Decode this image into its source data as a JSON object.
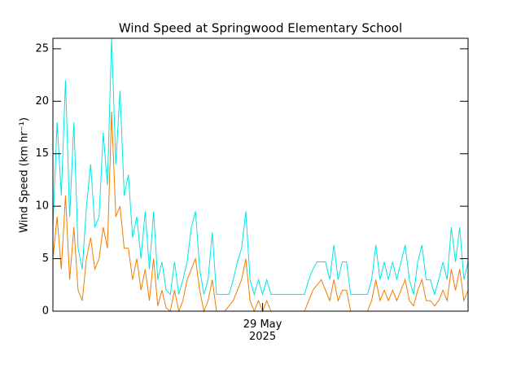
{
  "chart_data": {
    "type": "line",
    "title": "Wind Speed at Springwood Elementary School",
    "y_label": "Wind Speed (km hr⁻¹)",
    "categories": [
      null,
      null,
      null,
      null,
      null,
      null,
      null,
      null,
      null,
      null,
      null,
      null,
      null,
      null,
      null,
      null,
      null,
      null,
      null,
      null,
      null,
      null,
      null,
      null,
      null,
      null,
      null,
      null,
      null,
      null,
      null,
      null,
      null,
      null,
      null,
      null,
      null,
      null,
      null,
      null,
      null,
      null,
      null,
      null,
      null,
      null,
      null,
      null,
      null,
      null,
      "29 May 2025",
      null,
      null,
      null,
      null,
      null,
      null,
      null,
      null,
      null,
      null,
      null,
      null,
      null,
      null,
      null,
      null,
      null,
      null,
      null,
      null,
      null,
      null,
      null,
      null,
      null,
      null,
      null,
      null,
      null,
      null,
      null,
      null,
      null,
      null,
      null,
      null,
      null,
      null,
      null,
      null,
      null,
      null,
      null,
      null,
      null,
      null,
      null,
      null,
      null
    ],
    "series": [
      {
        "color": "#00e5e5",
        "values": [
          8,
          18,
          11,
          22,
          9,
          18,
          6,
          4,
          10,
          14,
          8,
          9,
          17,
          12,
          26,
          14,
          21,
          11,
          13,
          7,
          9,
          5,
          9.5,
          4,
          9.5,
          3,
          4.7,
          2,
          1.6,
          4.7,
          1.6,
          3,
          4.7,
          8,
          9.5,
          4,
          1.6,
          3,
          7.5,
          1.6,
          1.6,
          1.6,
          1.6,
          3,
          4.7,
          6,
          9.5,
          3,
          1.6,
          3,
          1.6,
          3,
          1.6,
          1.6,
          1.6,
          1.6,
          1.6,
          1.6,
          1.6,
          1.6,
          1.6,
          3,
          4,
          4.7,
          4.7,
          4.7,
          3,
          6.3,
          3,
          4.7,
          4.7,
          1.6,
          1.6,
          1.6,
          1.6,
          1.6,
          3,
          6.3,
          3,
          4.7,
          3,
          4.7,
          3,
          4.7,
          6.3,
          3,
          1.6,
          4.7,
          6.3,
          3,
          3,
          1.6,
          3,
          4.7,
          3,
          8,
          4.7,
          8,
          3,
          4.7
        ]
      },
      {
        "color": "#f07d00",
        "values": [
          5,
          9,
          4,
          11,
          3,
          8,
          2,
          1,
          5,
          7,
          4,
          5,
          8,
          6,
          19,
          9,
          10,
          6,
          6,
          3,
          5,
          2,
          4,
          1,
          5,
          0.5,
          2,
          0.3,
          0,
          2,
          0,
          1,
          3,
          4,
          5,
          2,
          0,
          1,
          3,
          0,
          0,
          0,
          0.5,
          1,
          2,
          3,
          5,
          1,
          0,
          1,
          0,
          1,
          0,
          0,
          0,
          0,
          0,
          0,
          0,
          0,
          0,
          1,
          2,
          2.5,
          3,
          2,
          1,
          3,
          1,
          2,
          2,
          0,
          0,
          0,
          0,
          0,
          1,
          3,
          1,
          2,
          1,
          2,
          1,
          2,
          3,
          1,
          0.5,
          2,
          3,
          1,
          1,
          0.5,
          1,
          2,
          1,
          4,
          2,
          4,
          1,
          2
        ]
      }
    ],
    "ylim": [
      0,
      26
    ],
    "yticks": [
      0,
      5,
      10,
      15,
      20,
      25
    ]
  }
}
